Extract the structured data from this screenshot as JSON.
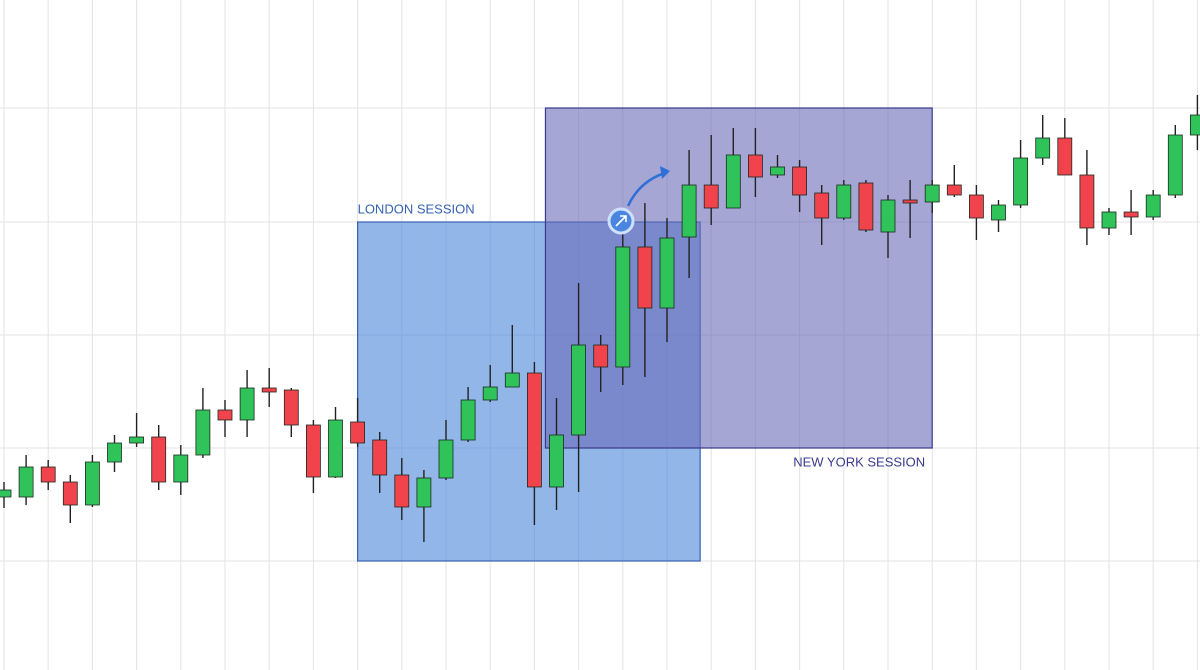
{
  "chart_data": {
    "type": "candlestick",
    "categories": [
      null,
      null,
      null,
      null,
      null,
      null,
      null,
      null,
      null,
      null,
      null,
      null,
      null,
      null,
      null,
      null,
      null,
      null,
      null,
      null,
      null,
      null,
      null,
      null,
      null,
      null,
      null,
      null,
      null,
      null,
      null,
      null,
      null,
      null,
      null,
      null,
      null,
      null,
      null,
      null,
      null,
      null,
      null,
      null,
      null,
      null,
      null,
      null,
      null,
      null,
      null,
      null,
      null,
      null,
      null
    ],
    "open": [
      173,
      173,
      203,
      188,
      165,
      208,
      227,
      233,
      188,
      215,
      260,
      250,
      282,
      280,
      245,
      193,
      248,
      230,
      195,
      163,
      192,
      230,
      270,
      283,
      297,
      183,
      235,
      325,
      303,
      423,
      362,
      433,
      485,
      462,
      515,
      495,
      503,
      477,
      452,
      487,
      438,
      470,
      468,
      485,
      475,
      450,
      465,
      512,
      532,
      495,
      442,
      458,
      453,
      475,
      535
    ],
    "high": [
      188,
      215,
      210,
      195,
      215,
      235,
      257,
      245,
      225,
      282,
      270,
      300,
      302,
      282,
      250,
      263,
      272,
      238,
      212,
      200,
      250,
      283,
      305,
      345,
      308,
      272,
      387,
      335,
      445,
      467,
      452,
      520,
      535,
      542,
      542,
      515,
      510,
      485,
      490,
      490,
      475,
      490,
      490,
      505,
      485,
      470,
      530,
      555,
      552,
      520,
      462,
      480,
      480,
      545,
      575
    ],
    "low": [
      162,
      165,
      180,
      147,
      163,
      198,
      223,
      180,
      175,
      212,
      233,
      233,
      263,
      233,
      177,
      192,
      223,
      177,
      150,
      128,
      190,
      228,
      268,
      283,
      145,
      160,
      178,
      278,
      285,
      293,
      328,
      392,
      445,
      462,
      473,
      492,
      458,
      425,
      450,
      438,
      412,
      432,
      457,
      473,
      430,
      438,
      462,
      505,
      495,
      425,
      435,
      435,
      450,
      472,
      520
    ],
    "close": [
      180,
      203,
      188,
      165,
      208,
      227,
      233,
      188,
      215,
      260,
      250,
      282,
      278,
      245,
      193,
      250,
      227,
      195,
      163,
      192,
      230,
      270,
      283,
      297,
      183,
      235,
      325,
      303,
      423,
      362,
      432,
      485,
      462,
      515,
      493,
      503,
      475,
      452,
      485,
      440,
      470,
      467,
      485,
      475,
      452,
      465,
      512,
      532,
      495,
      442,
      458,
      453,
      475,
      535,
      555
    ],
    "up_color": "#2fc35a",
    "down_color": "#f0434b",
    "ylim": [
      0,
      670
    ],
    "ygrid": [
      109,
      222,
      335,
      448,
      562
    ],
    "grid": true,
    "sessions": [
      {
        "label": "LONDON SESSION",
        "xrange": [
          16,
          31.5
        ],
        "yrange": [
          109,
          448
        ],
        "color": "#4a86d8",
        "border": "#3662b4"
      },
      {
        "label": "NEW YORK SESSION",
        "xrange": [
          24.5,
          42
        ],
        "yrange": [
          222,
          562
        ],
        "color": "#6a6ab8",
        "border": "#3a3a8c"
      }
    ]
  }
}
